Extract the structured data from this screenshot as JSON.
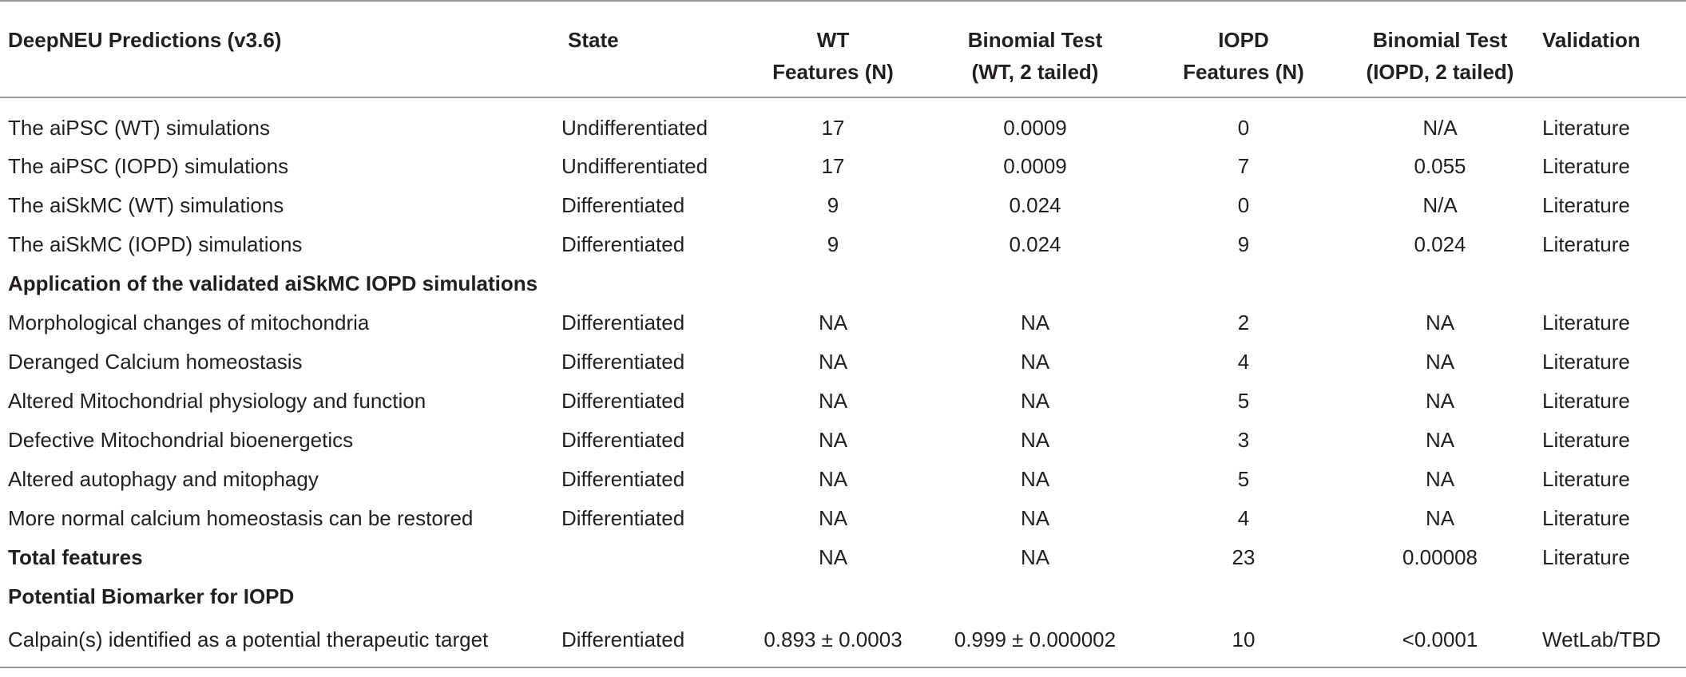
{
  "table": {
    "headers": [
      "DeepNEU Predictions (v3.6)",
      "State",
      "WT\nFeatures (N)",
      "Binomial Test\n(WT, 2 tailed)",
      "IOPD\nFeatures (N)",
      "Binomial Test\n(IOPD, 2 tailed)",
      "Validation"
    ],
    "header_lines": [
      [
        "DeepNEU Predictions (v3.6)",
        ""
      ],
      [
        "State",
        ""
      ],
      [
        "WT",
        "Features (N)"
      ],
      [
        "Binomial Test",
        "(WT, 2 tailed)"
      ],
      [
        "IOPD",
        "Features (N)"
      ],
      [
        "Binomial Test",
        "(IOPD, 2 tailed)"
      ],
      [
        "Validation",
        ""
      ]
    ],
    "rows": [
      {
        "type": "data",
        "cells": [
          "The aiPSC (WT) simulations",
          "Undifferentiated",
          "17",
          "0.0009",
          "0",
          "N/A",
          "Literature"
        ]
      },
      {
        "type": "data",
        "cells": [
          "The aiPSC (IOPD) simulations",
          "Undifferentiated",
          "17",
          "0.0009",
          "7",
          "0.055",
          "Literature"
        ]
      },
      {
        "type": "data",
        "cells": [
          "The aiSkMC (WT) simulations",
          "Differentiated",
          "9",
          "0.024",
          "0",
          "N/A",
          "Literature"
        ]
      },
      {
        "type": "data",
        "cells": [
          "The aiSkMC (IOPD) simulations",
          "Differentiated",
          "9",
          "0.024",
          "9",
          "0.024",
          "Literature"
        ]
      },
      {
        "type": "section",
        "cells": [
          "Application of the validated aiSkMC IOPD simulations"
        ]
      },
      {
        "type": "data",
        "cells": [
          "Morphological changes of mitochondria",
          "Differentiated",
          "NA",
          "NA",
          "2",
          "NA",
          "Literature"
        ]
      },
      {
        "type": "data",
        "cells": [
          "Deranged Calcium homeostasis",
          "Differentiated",
          "NA",
          "NA",
          "4",
          "NA",
          "Literature"
        ]
      },
      {
        "type": "data",
        "cells": [
          "Altered Mitochondrial physiology and function",
          "Differentiated",
          "NA",
          "NA",
          "5",
          "NA",
          "Literature"
        ]
      },
      {
        "type": "data",
        "cells": [
          "Defective Mitochondrial bioenergetics",
          "Differentiated",
          "NA",
          "NA",
          "3",
          "NA",
          "Literature"
        ]
      },
      {
        "type": "data",
        "cells": [
          "Altered autophagy and mitophagy",
          "Differentiated",
          "NA",
          "NA",
          "5",
          "NA",
          "Literature"
        ]
      },
      {
        "type": "data",
        "cells": [
          "More normal calcium homeostasis can be restored",
          "Differentiated",
          "NA",
          "NA",
          "4",
          "NA",
          "Literature"
        ]
      },
      {
        "type": "total",
        "cells": [
          "Total features",
          "",
          "NA",
          "NA",
          "23",
          "0.00008",
          "Literature"
        ]
      },
      {
        "type": "section",
        "cells": [
          "Potential Biomarker for IOPD"
        ]
      },
      {
        "type": "data",
        "cells": [
          "Calpain(s) identified as a potential therapeutic target",
          "Differentiated",
          "0.893 ± 0.0003",
          "0.999 ± 0.000002",
          "10",
          "<0.0001",
          "WetLab/TBD"
        ]
      }
    ]
  }
}
